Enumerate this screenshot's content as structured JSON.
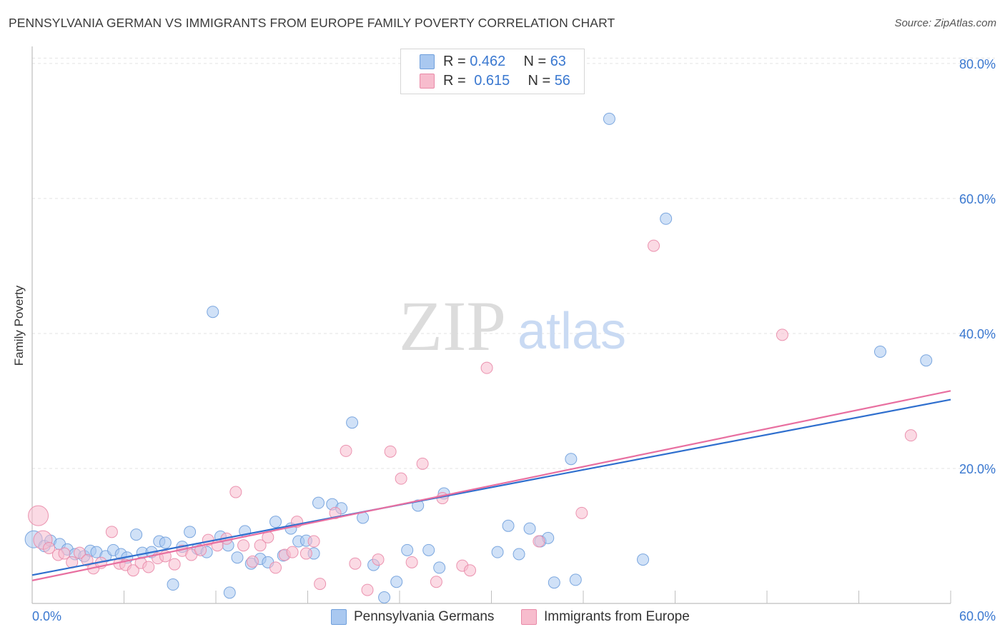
{
  "title": "PENNSYLVANIA GERMAN VS IMMIGRANTS FROM EUROPE FAMILY POVERTY CORRELATION CHART",
  "source": "Source: ZipAtlas.com",
  "watermark": {
    "zip": "ZIP",
    "atlas": "atlas"
  },
  "legend": {
    "rows": [
      {
        "r_label": "R = ",
        "r_value": "0.462",
        "n_label": "N = ",
        "n_value": "63",
        "color": "#a9c8f0",
        "border": "#6f9fdc"
      },
      {
        "r_label": "R = ",
        "r_value": "0.615",
        "n_label": "N = ",
        "n_value": "56",
        "color": "#f7bccd",
        "border": "#e98aa8"
      }
    ]
  },
  "chart_data": {
    "type": "scatter",
    "title": "PENNSYLVANIA GERMAN VS IMMIGRANTS FROM EUROPE FAMILY POVERTY CORRELATION CHART",
    "xlabel": "",
    "ylabel": "Family Poverty",
    "xlim": [
      0,
      60
    ],
    "ylim": [
      0,
      82
    ],
    "x_tick_labels": [
      "0.0%",
      "60.0%"
    ],
    "y_tick_labels": [
      "20.0%",
      "40.0%",
      "60.0%",
      "80.0%"
    ],
    "y_tick_values": [
      20,
      40,
      60,
      80
    ],
    "grid": true,
    "series": [
      {
        "name": "Pennsylvania Germans",
        "color": "#a9c8f0",
        "stroke": "#6f9fdc",
        "line_color": "#2f6fce",
        "trend": {
          "x": [
            0,
            60
          ],
          "y": [
            4.2,
            30.2
          ]
        },
        "points": [
          [
            0.1,
            9.5
          ],
          [
            0.8,
            8.5
          ],
          [
            1.2,
            9.3
          ],
          [
            1.8,
            8.8
          ],
          [
            2.3,
            8.0
          ],
          [
            2.8,
            7.3
          ],
          [
            3.4,
            7.0
          ],
          [
            3.8,
            7.8
          ],
          [
            4.2,
            7.6
          ],
          [
            4.8,
            7.0
          ],
          [
            5.3,
            7.9
          ],
          [
            5.8,
            7.3
          ],
          [
            6.2,
            6.8
          ],
          [
            6.8,
            10.2
          ],
          [
            7.2,
            7.5
          ],
          [
            7.8,
            7.6
          ],
          [
            8.3,
            9.2
          ],
          [
            8.7,
            9.0
          ],
          [
            9.2,
            2.8
          ],
          [
            9.8,
            8.4
          ],
          [
            10.3,
            10.6
          ],
          [
            10.8,
            8.1
          ],
          [
            11.4,
            7.6
          ],
          [
            11.8,
            43.2
          ],
          [
            12.3,
            9.9
          ],
          [
            12.8,
            8.6
          ],
          [
            12.9,
            1.6
          ],
          [
            13.4,
            6.8
          ],
          [
            13.9,
            10.7
          ],
          [
            14.3,
            5.9
          ],
          [
            14.9,
            6.6
          ],
          [
            15.4,
            6.1
          ],
          [
            15.9,
            12.1
          ],
          [
            16.4,
            7.1
          ],
          [
            16.9,
            11.1
          ],
          [
            17.4,
            9.2
          ],
          [
            17.9,
            9.3
          ],
          [
            18.4,
            7.4
          ],
          [
            18.7,
            14.9
          ],
          [
            19.6,
            14.7
          ],
          [
            20.2,
            14.1
          ],
          [
            20.9,
            26.8
          ],
          [
            21.6,
            12.7
          ],
          [
            22.3,
            5.7
          ],
          [
            23.0,
            0.9
          ],
          [
            23.8,
            3.2
          ],
          [
            24.5,
            7.9
          ],
          [
            25.2,
            14.5
          ],
          [
            25.9,
            7.9
          ],
          [
            26.6,
            5.3
          ],
          [
            26.9,
            16.3
          ],
          [
            30.4,
            7.6
          ],
          [
            31.1,
            11.5
          ],
          [
            31.8,
            7.3
          ],
          [
            32.5,
            11.1
          ],
          [
            33.2,
            9.2
          ],
          [
            33.7,
            9.7
          ],
          [
            34.1,
            3.1
          ],
          [
            35.2,
            21.4
          ],
          [
            35.5,
            3.5
          ],
          [
            37.7,
            71.8
          ],
          [
            39.9,
            6.5
          ],
          [
            41.4,
            57.0
          ],
          [
            55.4,
            37.3
          ],
          [
            58.4,
            36.0
          ]
        ]
      },
      {
        "name": "Immigrants from Europe",
        "color": "#f7bccd",
        "stroke": "#e98aa8",
        "line_color": "#e86fa0",
        "trend": {
          "x": [
            0,
            60
          ],
          "y": [
            3.4,
            31.5
          ]
        },
        "points": [
          [
            0.4,
            13.0
          ],
          [
            0.7,
            9.4
          ],
          [
            1.1,
            8.2
          ],
          [
            1.7,
            7.2
          ],
          [
            2.1,
            7.4
          ],
          [
            2.6,
            6.1
          ],
          [
            3.1,
            7.5
          ],
          [
            3.6,
            6.4
          ],
          [
            4.0,
            5.2
          ],
          [
            4.5,
            6.0
          ],
          [
            5.2,
            10.6
          ],
          [
            5.7,
            5.9
          ],
          [
            6.1,
            5.7
          ],
          [
            6.6,
            4.9
          ],
          [
            7.1,
            6.0
          ],
          [
            7.6,
            5.4
          ],
          [
            8.2,
            6.7
          ],
          [
            8.7,
            7.0
          ],
          [
            9.3,
            5.8
          ],
          [
            9.8,
            7.8
          ],
          [
            10.4,
            7.2
          ],
          [
            11.0,
            7.9
          ],
          [
            11.5,
            9.4
          ],
          [
            12.1,
            8.6
          ],
          [
            12.7,
            9.6
          ],
          [
            13.3,
            16.5
          ],
          [
            13.8,
            8.6
          ],
          [
            14.4,
            6.2
          ],
          [
            14.9,
            8.6
          ],
          [
            15.4,
            9.8
          ],
          [
            15.9,
            5.3
          ],
          [
            16.5,
            7.2
          ],
          [
            17.0,
            7.6
          ],
          [
            17.3,
            12.1
          ],
          [
            17.9,
            7.4
          ],
          [
            18.4,
            9.2
          ],
          [
            18.8,
            2.9
          ],
          [
            19.8,
            13.4
          ],
          [
            20.5,
            22.6
          ],
          [
            21.1,
            5.9
          ],
          [
            21.9,
            2.0
          ],
          [
            22.6,
            6.5
          ],
          [
            23.4,
            22.5
          ],
          [
            24.1,
            18.5
          ],
          [
            24.8,
            6.1
          ],
          [
            25.5,
            20.7
          ],
          [
            26.4,
            3.2
          ],
          [
            26.8,
            15.6
          ],
          [
            28.1,
            5.6
          ],
          [
            28.6,
            4.9
          ],
          [
            29.7,
            34.9
          ],
          [
            33.1,
            9.2
          ],
          [
            35.9,
            13.4
          ],
          [
            40.6,
            53.0
          ],
          [
            49.0,
            39.8
          ],
          [
            57.4,
            24.9
          ]
        ]
      }
    ]
  },
  "bottom_legend": [
    {
      "label": "Pennsylvania Germans",
      "color": "#a9c8f0",
      "border": "#6f9fdc"
    },
    {
      "label": "Immigrants from Europe",
      "color": "#f7bccd",
      "border": "#e98aa8"
    }
  ]
}
